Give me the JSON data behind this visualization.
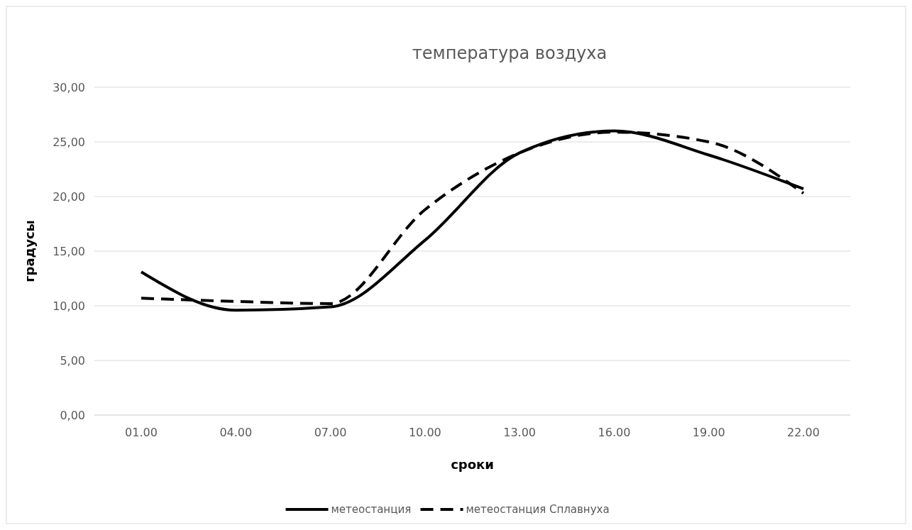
{
  "chart_data": {
    "type": "line",
    "title": "температура воздуха",
    "xlabel": "сроки",
    "ylabel": "градусы",
    "categories": [
      "01.00",
      "04.00",
      "07.00",
      "10.00",
      "13.00",
      "16.00",
      "19.00",
      "22.00"
    ],
    "series": [
      {
        "name": "метеостанция",
        "color": "#000000",
        "line_style": "solid",
        "values": [
          13.1,
          9.6,
          9.9,
          16.0,
          24.0,
          26.0,
          23.8,
          20.7
        ]
      },
      {
        "name": "метеостанция Сплавнуха",
        "color": "#000000",
        "line_style": "dashed",
        "values": [
          10.7,
          10.4,
          10.2,
          18.8,
          24.0,
          25.9,
          25.0,
          20.3
        ]
      }
    ],
    "ylim": [
      0,
      30
    ],
    "yticks": [
      {
        "value": 0,
        "label": "0,00"
      },
      {
        "value": 5,
        "label": "5,00"
      },
      {
        "value": 10,
        "label": "10,00"
      },
      {
        "value": 15,
        "label": "15,00"
      },
      {
        "value": 20,
        "label": "20,00"
      },
      {
        "value": 25,
        "label": "25,00"
      },
      {
        "value": 30,
        "label": "30,00"
      }
    ],
    "grid": "y",
    "legend": "bottom",
    "marker": "none"
  }
}
